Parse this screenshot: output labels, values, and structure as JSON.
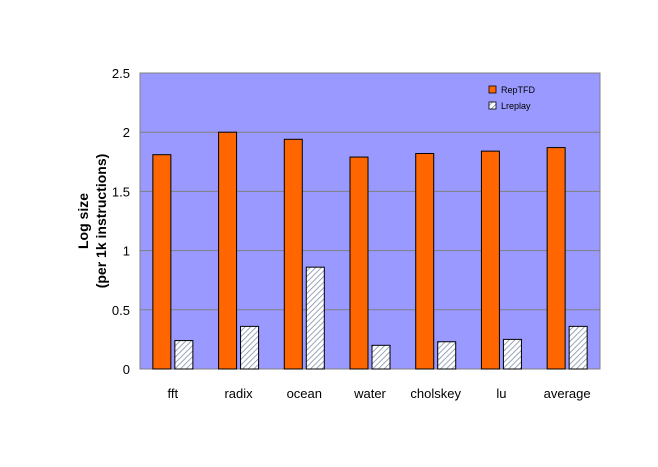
{
  "chart_data": {
    "type": "bar",
    "categories": [
      "fft",
      "radix",
      "ocean",
      "water",
      "cholskey",
      "lu",
      "average"
    ],
    "series": [
      {
        "name": "RepTFD",
        "values": [
          1.81,
          2.0,
          1.94,
          1.79,
          1.82,
          1.84,
          1.87
        ],
        "color": "#ff6600",
        "pattern": "solid"
      },
      {
        "name": "Lreplay",
        "values": [
          0.24,
          0.36,
          0.86,
          0.2,
          0.23,
          0.25,
          0.36
        ],
        "color": "#d6dde8",
        "pattern": "diagonal-hatch"
      }
    ],
    "ylabel_lines": [
      "Log size",
      "(per 1k instructions)"
    ],
    "xlabel": "",
    "title": "",
    "ylim": [
      0,
      2.5
    ],
    "yticks": [
      "0",
      "0.5",
      "1",
      "1.5",
      "2",
      "2.5"
    ],
    "ytick_values": [
      0,
      0.5,
      1,
      1.5,
      2,
      2.5
    ],
    "grid": true,
    "legend_position": "top-right",
    "plot_background": "#9999ff"
  }
}
